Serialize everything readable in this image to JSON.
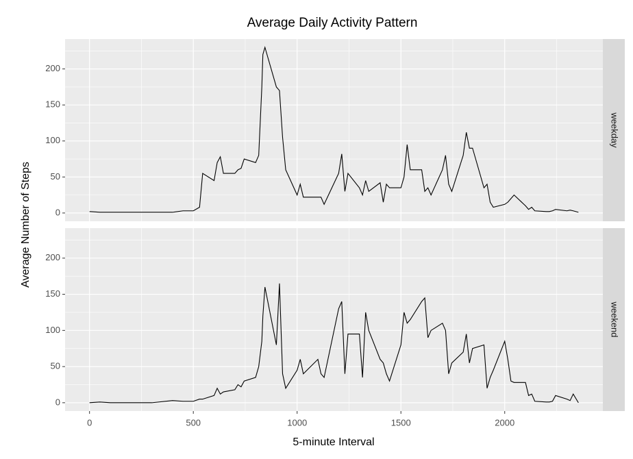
{
  "chart_data": {
    "type": "line",
    "facet": true,
    "title": "Average Daily Activity Pattern",
    "x_label": "5-minute Interval",
    "y_label": "Average Number of Steps",
    "x": [
      0,
      50,
      100,
      200,
      300,
      400,
      450,
      500,
      530,
      545,
      600,
      615,
      630,
      645,
      700,
      715,
      730,
      745,
      800,
      815,
      830,
      835,
      845,
      900,
      915,
      930,
      945,
      1000,
      1015,
      1030,
      1100,
      1115,
      1130,
      1200,
      1215,
      1230,
      1245,
      1300,
      1315,
      1330,
      1345,
      1400,
      1415,
      1430,
      1445,
      1500,
      1515,
      1530,
      1545,
      1600,
      1615,
      1630,
      1645,
      1700,
      1715,
      1730,
      1745,
      1800,
      1815,
      1830,
      1845,
      1900,
      1915,
      1930,
      1945,
      2000,
      2015,
      2030,
      2045,
      2100,
      2115,
      2130,
      2145,
      2200,
      2215,
      2230,
      2245,
      2300,
      2315,
      2330,
      2355
    ],
    "series": [
      {
        "name": "weekday",
        "color": "#000000",
        "values": [
          2,
          1,
          1,
          1,
          1,
          1,
          3,
          3,
          8,
          55,
          45,
          70,
          78,
          55,
          55,
          60,
          62,
          75,
          70,
          80,
          175,
          220,
          230,
          175,
          170,
          105,
          60,
          25,
          40,
          22,
          22,
          22,
          12,
          55,
          82,
          30,
          55,
          35,
          25,
          45,
          30,
          42,
          15,
          40,
          35,
          35,
          50,
          95,
          60,
          60,
          30,
          35,
          25,
          60,
          80,
          40,
          30,
          80,
          112,
          90,
          90,
          35,
          40,
          15,
          8,
          12,
          15,
          20,
          25,
          10,
          5,
          8,
          3,
          2,
          2,
          3,
          5,
          3,
          4,
          3,
          1
        ]
      },
      {
        "name": "weekend",
        "color": "#000000",
        "values": [
          0,
          1,
          0,
          0,
          0,
          3,
          2,
          2,
          5,
          5,
          10,
          20,
          12,
          15,
          18,
          25,
          22,
          30,
          35,
          50,
          85,
          120,
          160,
          80,
          165,
          40,
          20,
          45,
          60,
          40,
          60,
          40,
          35,
          130,
          140,
          40,
          95,
          95,
          35,
          125,
          100,
          60,
          55,
          40,
          30,
          80,
          125,
          110,
          115,
          140,
          145,
          90,
          100,
          110,
          100,
          40,
          55,
          70,
          95,
          55,
          75,
          80,
          20,
          35,
          45,
          85,
          60,
          30,
          28,
          28,
          10,
          12,
          2,
          1,
          1,
          2,
          10,
          5,
          3,
          12,
          0
        ]
      }
    ],
    "xlim": [
      -117.75,
      2472.75
    ],
    "xticks": [
      0,
      500,
      1000,
      1500,
      2000
    ],
    "ylim": [
      -11.5,
      241.5
    ],
    "yticks": [
      0,
      50,
      100,
      150,
      200
    ],
    "grid": true
  }
}
